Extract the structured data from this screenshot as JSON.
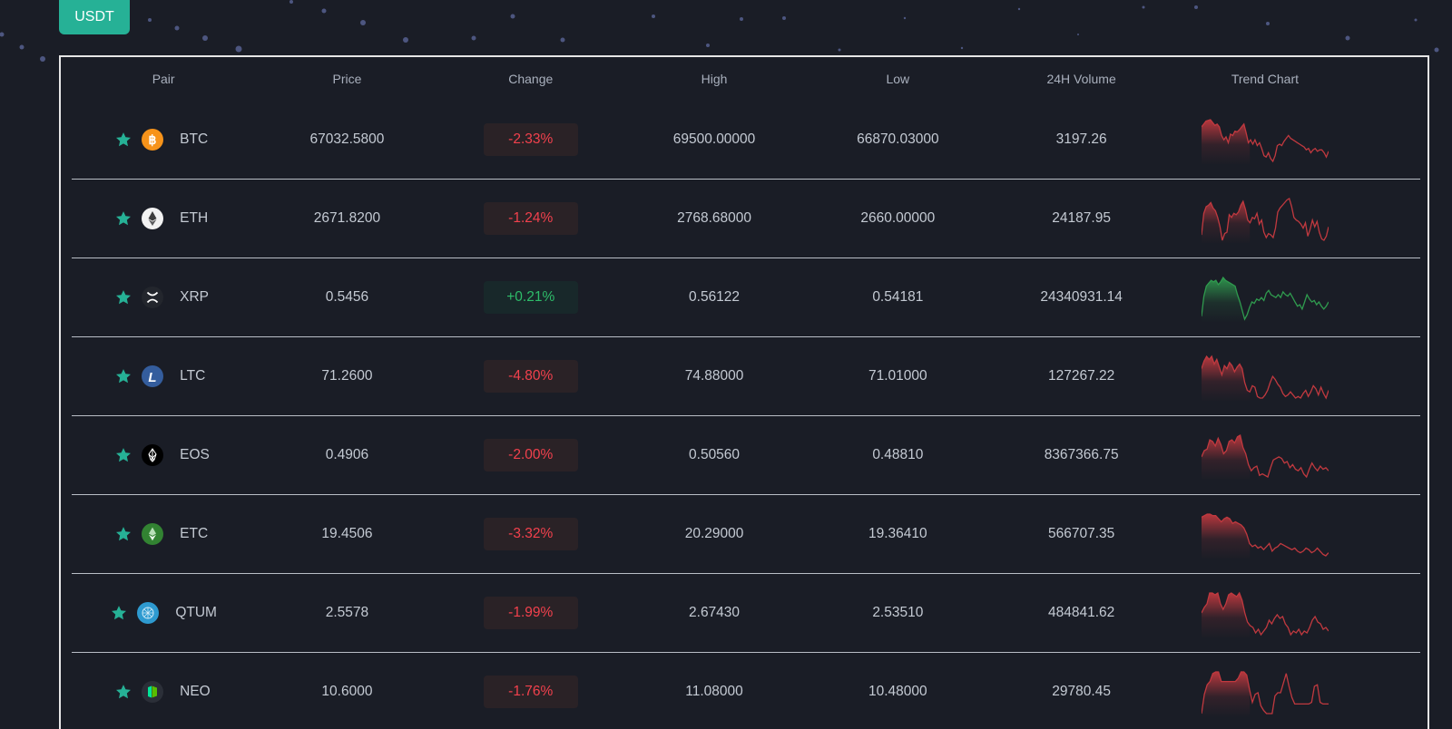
{
  "quote_selector": {
    "label": "USDT"
  },
  "table": {
    "columns": [
      "Pair",
      "Price",
      "Change",
      "High",
      "Low",
      "24H Volume",
      "Trend Chart"
    ],
    "rows": [
      {
        "symbol": "BTC",
        "icon": "bitcoin-icon",
        "icon_bg": "#f7931a",
        "price": "67032.5800",
        "change": "-2.33%",
        "direction": "down",
        "high": "69500.00000",
        "low": "66870.03000",
        "volume": "3197.26",
        "trend": [
          62,
          66,
          70,
          71,
          72,
          68,
          64,
          66,
          62,
          50,
          44,
          48,
          40,
          52,
          50,
          56,
          55,
          58,
          62,
          66,
          54,
          40,
          44,
          38,
          44,
          36,
          40,
          32,
          22,
          20,
          26,
          18,
          14,
          22,
          36,
          38,
          36,
          42,
          46,
          50,
          46,
          44,
          42,
          40,
          38,
          36,
          34,
          30,
          32,
          26,
          30,
          32,
          28,
          30,
          30,
          26,
          20,
          28
        ]
      },
      {
        "symbol": "ETH",
        "icon": "ethereum-icon",
        "icon_bg": "#ffffff",
        "price": "2671.8200",
        "change": "-1.24%",
        "direction": "down",
        "high": "2768.68000",
        "low": "2660.00000",
        "volume": "24187.95",
        "trend": [
          18,
          50,
          60,
          62,
          66,
          58,
          54,
          44,
          30,
          10,
          20,
          22,
          48,
          44,
          50,
          48,
          52,
          62,
          68,
          56,
          40,
          36,
          44,
          42,
          50,
          34,
          40,
          22,
          14,
          20,
          18,
          14,
          28,
          52,
          58,
          62,
          66,
          70,
          72,
          60,
          44,
          40,
          38,
          34,
          28,
          36,
          16,
          26,
          40,
          30,
          38,
          22,
          12,
          10,
          16,
          30
        ]
      },
      {
        "symbol": "XRP",
        "icon": "xrp-icon",
        "icon_bg": "#23262d",
        "price": "0.5456",
        "change": "+0.21%",
        "direction": "up",
        "high": "0.56122",
        "low": "0.54181",
        "volume": "24340931.14",
        "trend": [
          10,
          38,
          52,
          56,
          60,
          58,
          60,
          54,
          58,
          64,
          60,
          58,
          56,
          54,
          52,
          40,
          30,
          18,
          6,
          12,
          22,
          30,
          28,
          34,
          32,
          36,
          32,
          42,
          46,
          40,
          38,
          36,
          40,
          36,
          44,
          40,
          38,
          42,
          36,
          30,
          24,
          26,
          20,
          30,
          40,
          34,
          30,
          32,
          26,
          30,
          24,
          20,
          24,
          30
        ]
      },
      {
        "symbol": "LTC",
        "icon": "litecoin-icon",
        "icon_bg": "#345d9d",
        "price": "71.2600",
        "change": "-4.80%",
        "direction": "down",
        "high": "74.88000",
        "low": "71.01000",
        "volume": "127267.22",
        "trend": [
          48,
          58,
          64,
          60,
          64,
          54,
          60,
          50,
          40,
          52,
          48,
          56,
          52,
          44,
          50,
          54,
          48,
          30,
          20,
          18,
          26,
          24,
          12,
          10,
          10,
          14,
          20,
          30,
          38,
          34,
          28,
          24,
          16,
          12,
          14,
          18,
          14,
          10,
          12,
          10,
          16,
          20,
          12,
          18,
          26,
          22,
          14,
          24,
          16,
          10,
          20
        ]
      },
      {
        "symbol": "EOS",
        "icon": "eos-icon",
        "icon_bg": "#000000",
        "price": "0.4906",
        "change": "-2.00%",
        "direction": "down",
        "high": "0.50560",
        "low": "0.48810",
        "volume": "8367366.75",
        "trend": [
          36,
          44,
          46,
          58,
          56,
          50,
          60,
          52,
          40,
          44,
          56,
          58,
          54,
          62,
          64,
          48,
          40,
          26,
          18,
          22,
          24,
          12,
          14,
          12,
          10,
          22,
          32,
          34,
          36,
          34,
          28,
          30,
          22,
          26,
          20,
          18,
          22,
          14,
          10,
          20,
          28,
          22,
          18,
          24,
          20,
          22,
          18
        ]
      },
      {
        "symbol": "ETC",
        "icon": "ethereum-classic-icon",
        "icon_bg": "#328332",
        "price": "19.4506",
        "change": "-3.32%",
        "direction": "down",
        "high": "20.29000",
        "low": "19.36410",
        "volume": "566707.35",
        "trend": [
          54,
          56,
          58,
          58,
          56,
          56,
          52,
          48,
          52,
          54,
          52,
          46,
          48,
          46,
          44,
          40,
          32,
          20,
          16,
          18,
          14,
          16,
          12,
          16,
          20,
          10,
          14,
          16,
          20,
          18,
          16,
          14,
          12,
          14,
          10,
          8,
          10,
          14,
          12,
          8,
          10,
          14,
          10,
          6,
          4,
          8
        ]
      },
      {
        "symbol": "QTUM",
        "icon": "qtum-icon",
        "icon_bg": "#2e9ad0",
        "price": "2.5578",
        "change": "-1.99%",
        "direction": "down",
        "high": "2.67430",
        "low": "2.53510",
        "volume": "484841.62",
        "trend": [
          36,
          42,
          46,
          58,
          58,
          56,
          58,
          46,
          40,
          46,
          56,
          58,
          56,
          54,
          58,
          50,
          36,
          26,
          22,
          20,
          14,
          18,
          12,
          16,
          20,
          28,
          24,
          30,
          34,
          30,
          32,
          24,
          20,
          12,
          16,
          14,
          18,
          12,
          16,
          14,
          20,
          28,
          32,
          26,
          24,
          18,
          20,
          16
        ]
      },
      {
        "symbol": "NEO",
        "icon": "neo-icon",
        "icon_bg": "#2b2f38",
        "price": "10.6000",
        "change": "-1.76%",
        "direction": "down",
        "high": "11.08000",
        "low": "10.48000",
        "volume": "29780.45",
        "trend": [
          0,
          24,
          36,
          40,
          50,
          52,
          52,
          40,
          40,
          40,
          40,
          40,
          40,
          44,
          52,
          52,
          48,
          30,
          14,
          24,
          26,
          10,
          4,
          0,
          0,
          0,
          22,
          26,
          26,
          38,
          50,
          34,
          20,
          12,
          12,
          12,
          12,
          12,
          12,
          14,
          34,
          36,
          14,
          12,
          12,
          12
        ]
      }
    ]
  },
  "colors": {
    "accent": "#26b196",
    "down": "#f2414d",
    "up": "#2ebd6a",
    "background": "#1a1d26",
    "border": "#e6e6e6",
    "trend_down": "#c0393f",
    "trend_up": "#2f9a4e"
  }
}
